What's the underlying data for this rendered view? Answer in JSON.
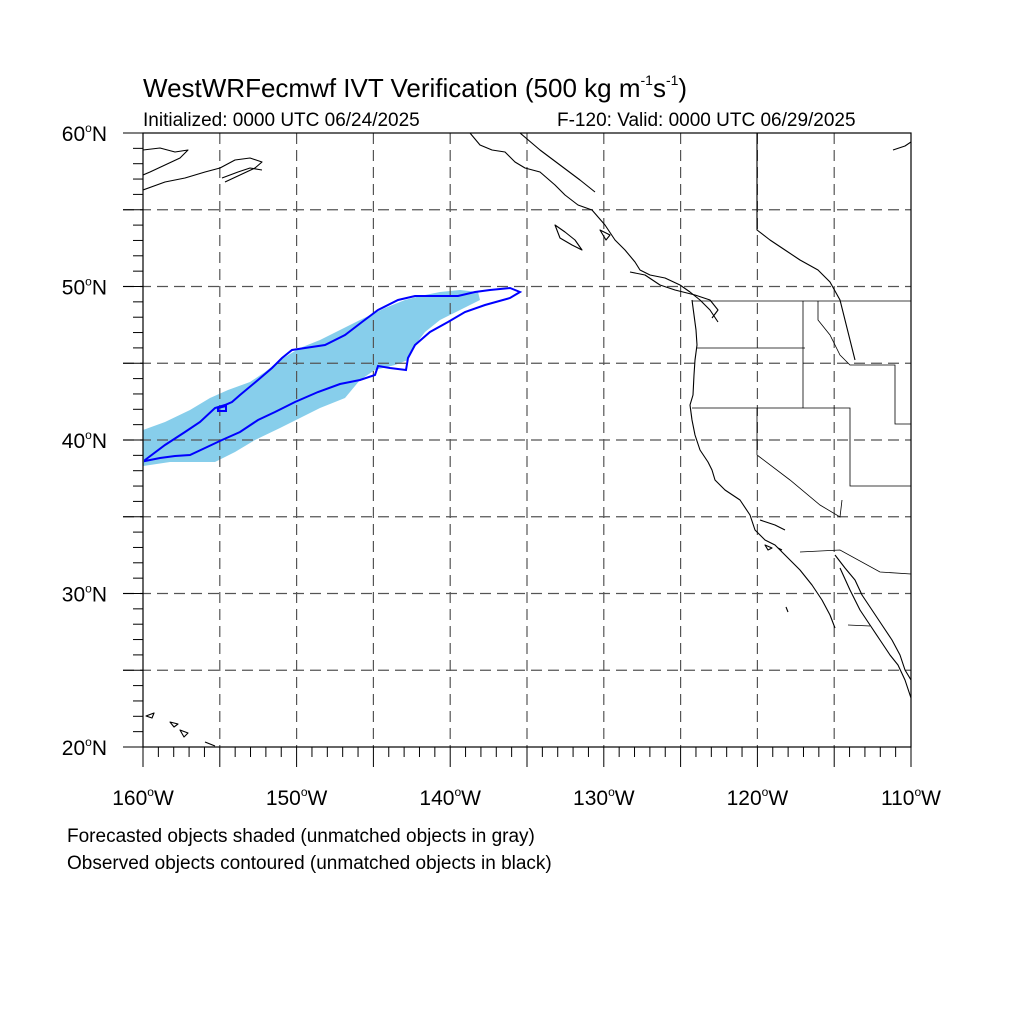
{
  "title": {
    "main": "WestWRFecmwf IVT Verification (500 kg m",
    "sup1": "-1",
    "mid": "s",
    "sup2": "-1",
    "end": ")"
  },
  "initialized": "Initialized: 0000 UTC 06/24/2025",
  "valid": "F-120: Valid: 0000 UTC 06/29/2025",
  "notes": {
    "line1": "Forecasted objects shaded (unmatched objects in gray)",
    "line2": "Observed objects contoured (unmatched objects in black)"
  },
  "map": {
    "lon_range": [
      -160,
      -110
    ],
    "lat_range": [
      20,
      60
    ],
    "lon_ticks": [
      {
        "value": -160,
        "num": "160",
        "dir": "W"
      },
      {
        "value": -150,
        "num": "150",
        "dir": "W"
      },
      {
        "value": -140,
        "num": "140",
        "dir": "W"
      },
      {
        "value": -130,
        "num": "130",
        "dir": "W"
      },
      {
        "value": -120,
        "num": "120",
        "dir": "W"
      },
      {
        "value": -110,
        "num": "110",
        "dir": "W"
      }
    ],
    "lat_ticks": [
      {
        "value": 20,
        "num": "20",
        "dir": "N"
      },
      {
        "value": 30,
        "num": "30",
        "dir": "N"
      },
      {
        "value": 40,
        "num": "40",
        "dir": "N"
      },
      {
        "value": 50,
        "num": "50",
        "dir": "N"
      },
      {
        "value": 60,
        "num": "60",
        "dir": "N"
      }
    ],
    "grid_spacing_deg": 5,
    "colors": {
      "forecast_fill": "#87ceeb",
      "observed_contour": "#0000ff",
      "grid": "#555555",
      "coast": "#000000"
    }
  }
}
